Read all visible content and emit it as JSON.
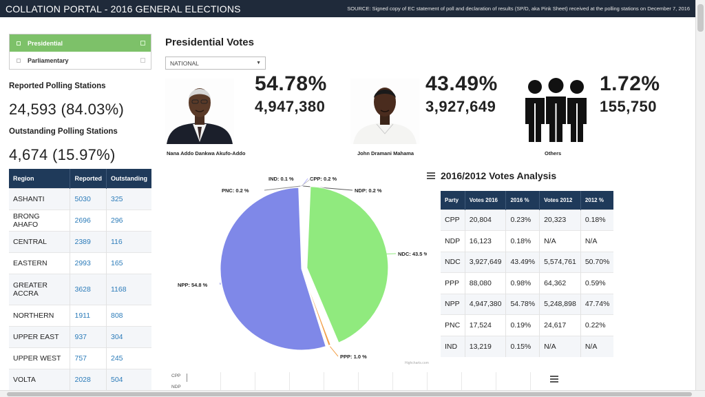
{
  "header": {
    "title": "COLLATION PORTAL - 2016 GENERAL ELECTIONS",
    "source": "SOURCE: Signed copy of EC statement of poll and declaration of results (SP/D, aka Pink Sheet) received at the polling stations on December 7, 2016"
  },
  "election_nav": [
    {
      "label": "Presidential",
      "active": true
    },
    {
      "label": "Parliamentary",
      "active": false
    }
  ],
  "stats": {
    "reported_label": "Reported Polling Stations",
    "reported_value": "24,593 (84.03%)",
    "outstanding_label": "Outstanding Polling Stations",
    "outstanding_value": "4,674 (15.97%)"
  },
  "region_table": {
    "headers": [
      "Region",
      "Reported",
      "Outstanding"
    ],
    "rows": [
      [
        "ASHANTI",
        "5030",
        "325"
      ],
      [
        "BRONG AHAFO",
        "2696",
        "296"
      ],
      [
        "CENTRAL",
        "2389",
        "116"
      ],
      [
        "EASTERN",
        "2993",
        "165"
      ],
      [
        "GREATER ACCRA",
        "3628",
        "1168"
      ],
      [
        "NORTHERN",
        "1911",
        "808"
      ],
      [
        "UPPER EAST",
        "937",
        "304"
      ],
      [
        "UPPER WEST",
        "757",
        "245"
      ],
      [
        "VOLTA",
        "2028",
        "504"
      ]
    ]
  },
  "main": {
    "title": "Presidential Votes",
    "select_value": "NATIONAL"
  },
  "candidates": [
    {
      "name": "Nana Addo Dankwa Akufo-Addo",
      "percent": "54.78%",
      "votes": "4,947,380",
      "icon": "candidate-photo-akufo-addo"
    },
    {
      "name": "John Dramani Mahama",
      "percent": "43.49%",
      "votes": "3,927,649",
      "icon": "candidate-photo-mahama"
    },
    {
      "name": "Others",
      "percent": "1.72%",
      "votes": "155,750",
      "icon": "group-people-icon"
    }
  ],
  "chart_data": {
    "type": "pie",
    "slices": [
      {
        "label": "NPP: 54.8 %",
        "party": "NPP",
        "value": 54.8,
        "color": "#7f88e8"
      },
      {
        "label": "NDC: 43.5 %",
        "party": "NDC",
        "value": 43.5,
        "color": "#90ea7e"
      },
      {
        "label": "PPP: 1.0 %",
        "party": "PPP",
        "value": 1.0,
        "color": "#f2a04a"
      },
      {
        "label": "PNC: 0.2 %",
        "party": "PNC",
        "value": 0.2,
        "color": "#8a8a8a"
      },
      {
        "label": "IND: 0.1 %",
        "party": "IND",
        "value": 0.1,
        "color": "#c0c0c0"
      },
      {
        "label": "CPP: 0.2 %",
        "party": "CPP",
        "value": 0.2,
        "color": "#b0b0ff"
      },
      {
        "label": "NDP: 0.2 %",
        "party": "NDP",
        "value": 0.2,
        "color": "#5a5a5a"
      }
    ],
    "credits": "Highcharts.com"
  },
  "analysis": {
    "title": "2016/2012 Votes Analysis",
    "headers": [
      "Party",
      "Votes 2016",
      "2016 %",
      "Votes 2012",
      "2012 %"
    ],
    "rows": [
      [
        "CPP",
        "20,804",
        "0.23%",
        "20,323",
        "0.18%"
      ],
      [
        "NDP",
        "16,123",
        "0.18%",
        "N/A",
        "N/A"
      ],
      [
        "NDC",
        "3,927,649",
        "43.49%",
        "5,574,761",
        "50.70%"
      ],
      [
        "PPP",
        "88,080",
        "0.98%",
        "64,362",
        "0.59%"
      ],
      [
        "NPP",
        "4,947,380",
        "54.78%",
        "5,248,898",
        "47.74%"
      ],
      [
        "PNC",
        "17,524",
        "0.19%",
        "24,617",
        "0.22%"
      ],
      [
        "IND",
        "13,219",
        "0.15%",
        "N/A",
        "N/A"
      ]
    ]
  },
  "mini_chart": {
    "labels": [
      "CPP",
      "NDP"
    ]
  }
}
